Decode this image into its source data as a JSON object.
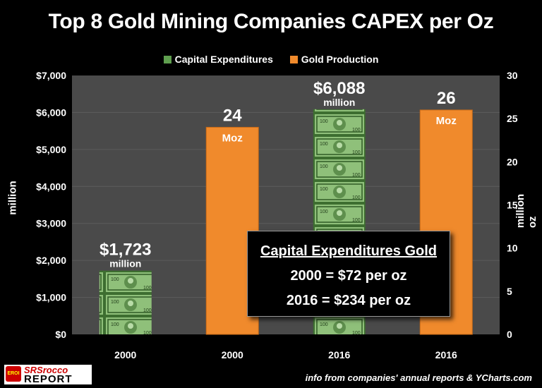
{
  "chart_data": {
    "type": "bar",
    "title": "Top 8 Gold Mining Companies CAPEX per Oz",
    "categories": [
      "2000",
      "2000",
      "2016",
      "2016"
    ],
    "series": [
      {
        "name": "Capital Expenditures",
        "axis": "left",
        "unit": "million",
        "values": [
          1723,
          null,
          6088,
          null
        ]
      },
      {
        "name": "Gold Production",
        "axis": "right",
        "unit": "Moz",
        "values": [
          null,
          24,
          null,
          26
        ]
      }
    ],
    "bar_labels": [
      {
        "value": "$1,723",
        "unit": "million"
      },
      {
        "value": "24",
        "unit": "Moz"
      },
      {
        "value": "$6,088",
        "unit": "million"
      },
      {
        "value": "26",
        "unit": "Moz"
      }
    ],
    "y_left": {
      "label": "million",
      "min": 0,
      "max": 7000,
      "step": 1000,
      "ticks": [
        "$0",
        "$1,000",
        "$2,000",
        "$3,000",
        "$4,000",
        "$5,000",
        "$6,000",
        "$7,000"
      ]
    },
    "y_right": {
      "label": "million oz",
      "min": 0,
      "max": 30,
      "step": 5,
      "ticks": [
        "0",
        "5",
        "10",
        "15",
        "20",
        "25",
        "30"
      ]
    },
    "legend": [
      "Capital Expenditures",
      "Gold Production"
    ],
    "legend_position": "top"
  },
  "colors": {
    "capex": "#5f9f4f",
    "gold": "#f08a2c",
    "plot_bg": "#4a4a4a"
  },
  "annotation": {
    "heading": "Capital Expenditures Gold",
    "line1": "2000 = $72 per oz",
    "line2": "2016 = $234 per oz"
  },
  "footer": "info from companies' annual reports & YCharts.com",
  "logo": {
    "badge": "EROI",
    "line1": "SRSrocco",
    "line2": "REPORT"
  }
}
